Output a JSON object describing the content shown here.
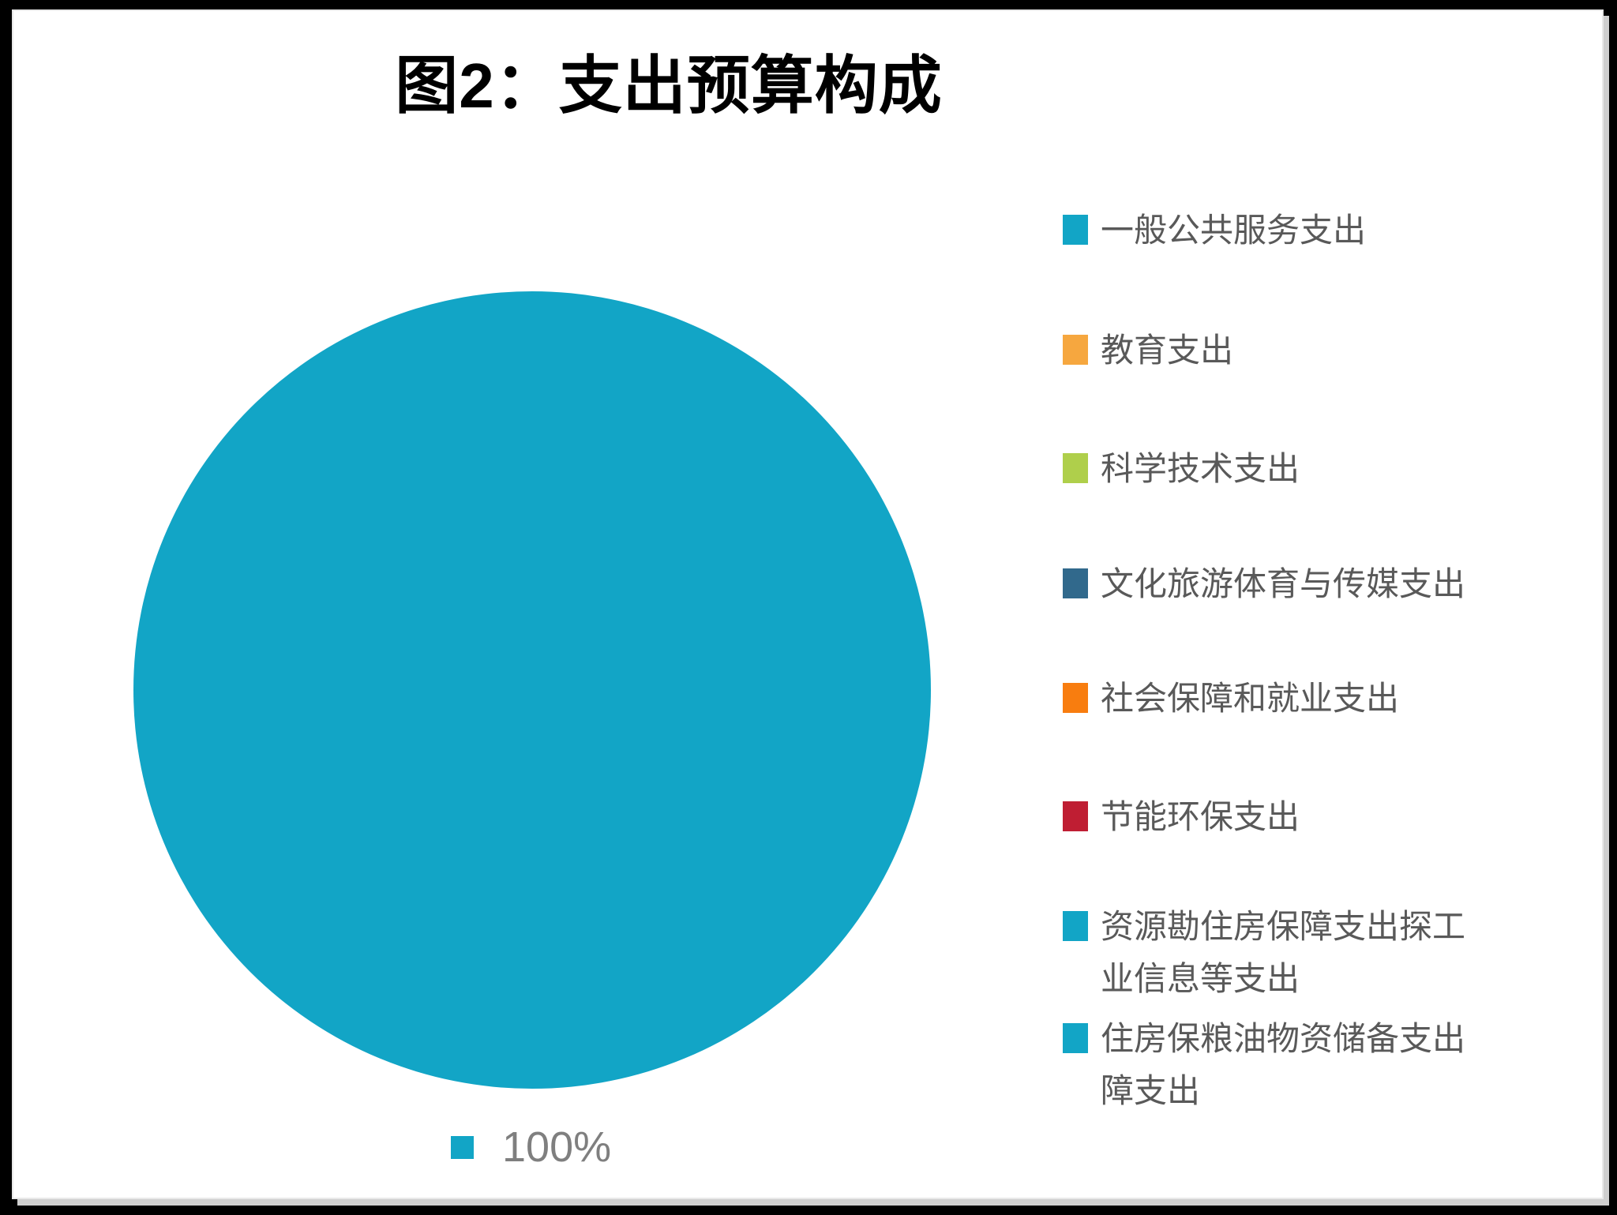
{
  "title": "图2：支出预算构成",
  "chart_data": {
    "type": "pie",
    "title": "图2：支出预算构成",
    "slices": [
      {
        "label": "一般公共服务支出",
        "value": 100,
        "data_label": "100%",
        "color": "#12A5C6"
      }
    ],
    "legend_position": "right",
    "legend": [
      {
        "label": "一般公共服务支出",
        "color": "#12A5C6"
      },
      {
        "label": "教育支出",
        "color": "#F6A73F"
      },
      {
        "label": "科学技术支出",
        "color": "#AFCF4B"
      },
      {
        "label": "文化旅游体育与传媒支出",
        "color": "#31698C"
      },
      {
        "label": "社会保障和就业支出",
        "color": "#F87D0F"
      },
      {
        "label": "节能环保支出",
        "color": "#BF1E33"
      },
      {
        "label": "资源勘住房保障支出探工\n业信息等支出",
        "color": "#12A5C6"
      },
      {
        "label": "住房保粮油物资储备支出\n障支出",
        "color": "#12A5C6"
      }
    ],
    "data_label": {
      "text": "100%",
      "swatch_color": "#12A5C6",
      "text_color": "#7F7F7F"
    }
  }
}
